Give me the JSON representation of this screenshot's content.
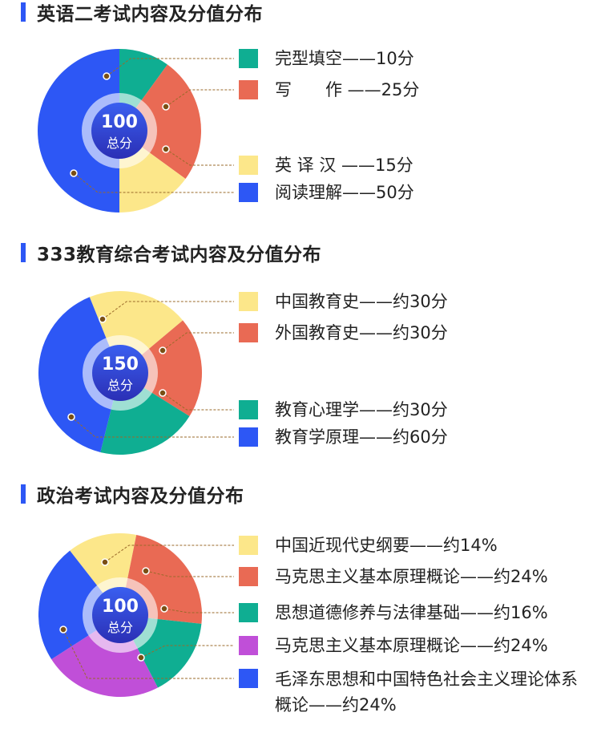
{
  "chart_data": [
    {
      "type": "pie",
      "title": "英语二考试内容及分值分布",
      "center_value": "100",
      "center_label": "总分",
      "slices": [
        {
          "label": "完型填空——10分",
          "value": 10,
          "color": "#0fae92"
        },
        {
          "label": "写　　作 ——25分",
          "value": 25,
          "color": "#e96a54"
        },
        {
          "label": "英  译  汉 ——15分",
          "value": 15,
          "color": "#fce78a"
        },
        {
          "label": "阅读理解——50分",
          "value": 50,
          "color": "#2d57f5"
        }
      ]
    },
    {
      "type": "pie",
      "title": "333教育综合考试内容及分值分布",
      "center_value": "150",
      "center_label": "总分",
      "slices": [
        {
          "label": "中国教育史——约30分",
          "value": 30,
          "color": "#fce78a"
        },
        {
          "label": "外国教育史——约30分",
          "value": 30,
          "color": "#e96a54"
        },
        {
          "label": "教育心理学——约30分",
          "value": 30,
          "color": "#0fae92"
        },
        {
          "label": "教育学原理——约60分",
          "value": 60,
          "color": "#2d57f5"
        }
      ]
    },
    {
      "type": "pie",
      "title": "政治考试内容及分值分布",
      "center_value": "100",
      "center_label": "总分",
      "slices": [
        {
          "label": "中国近现代史纲要——约14%",
          "value": 14,
          "color": "#fce78a"
        },
        {
          "label": "马克思主义基本原理概论——约24%",
          "value": 24,
          "color": "#e96a54"
        },
        {
          "label": "思想道德修养与法律基础——约16%",
          "value": 16,
          "color": "#0fae92"
        },
        {
          "label": "马克思主义基本原理概论——约24%",
          "value": 24,
          "color": "#c04fd8"
        },
        {
          "label": "毛泽东思想和中国特色社会主义理论体系概论——约24%",
          "value": 24,
          "color": "#2d57f5"
        }
      ]
    }
  ]
}
